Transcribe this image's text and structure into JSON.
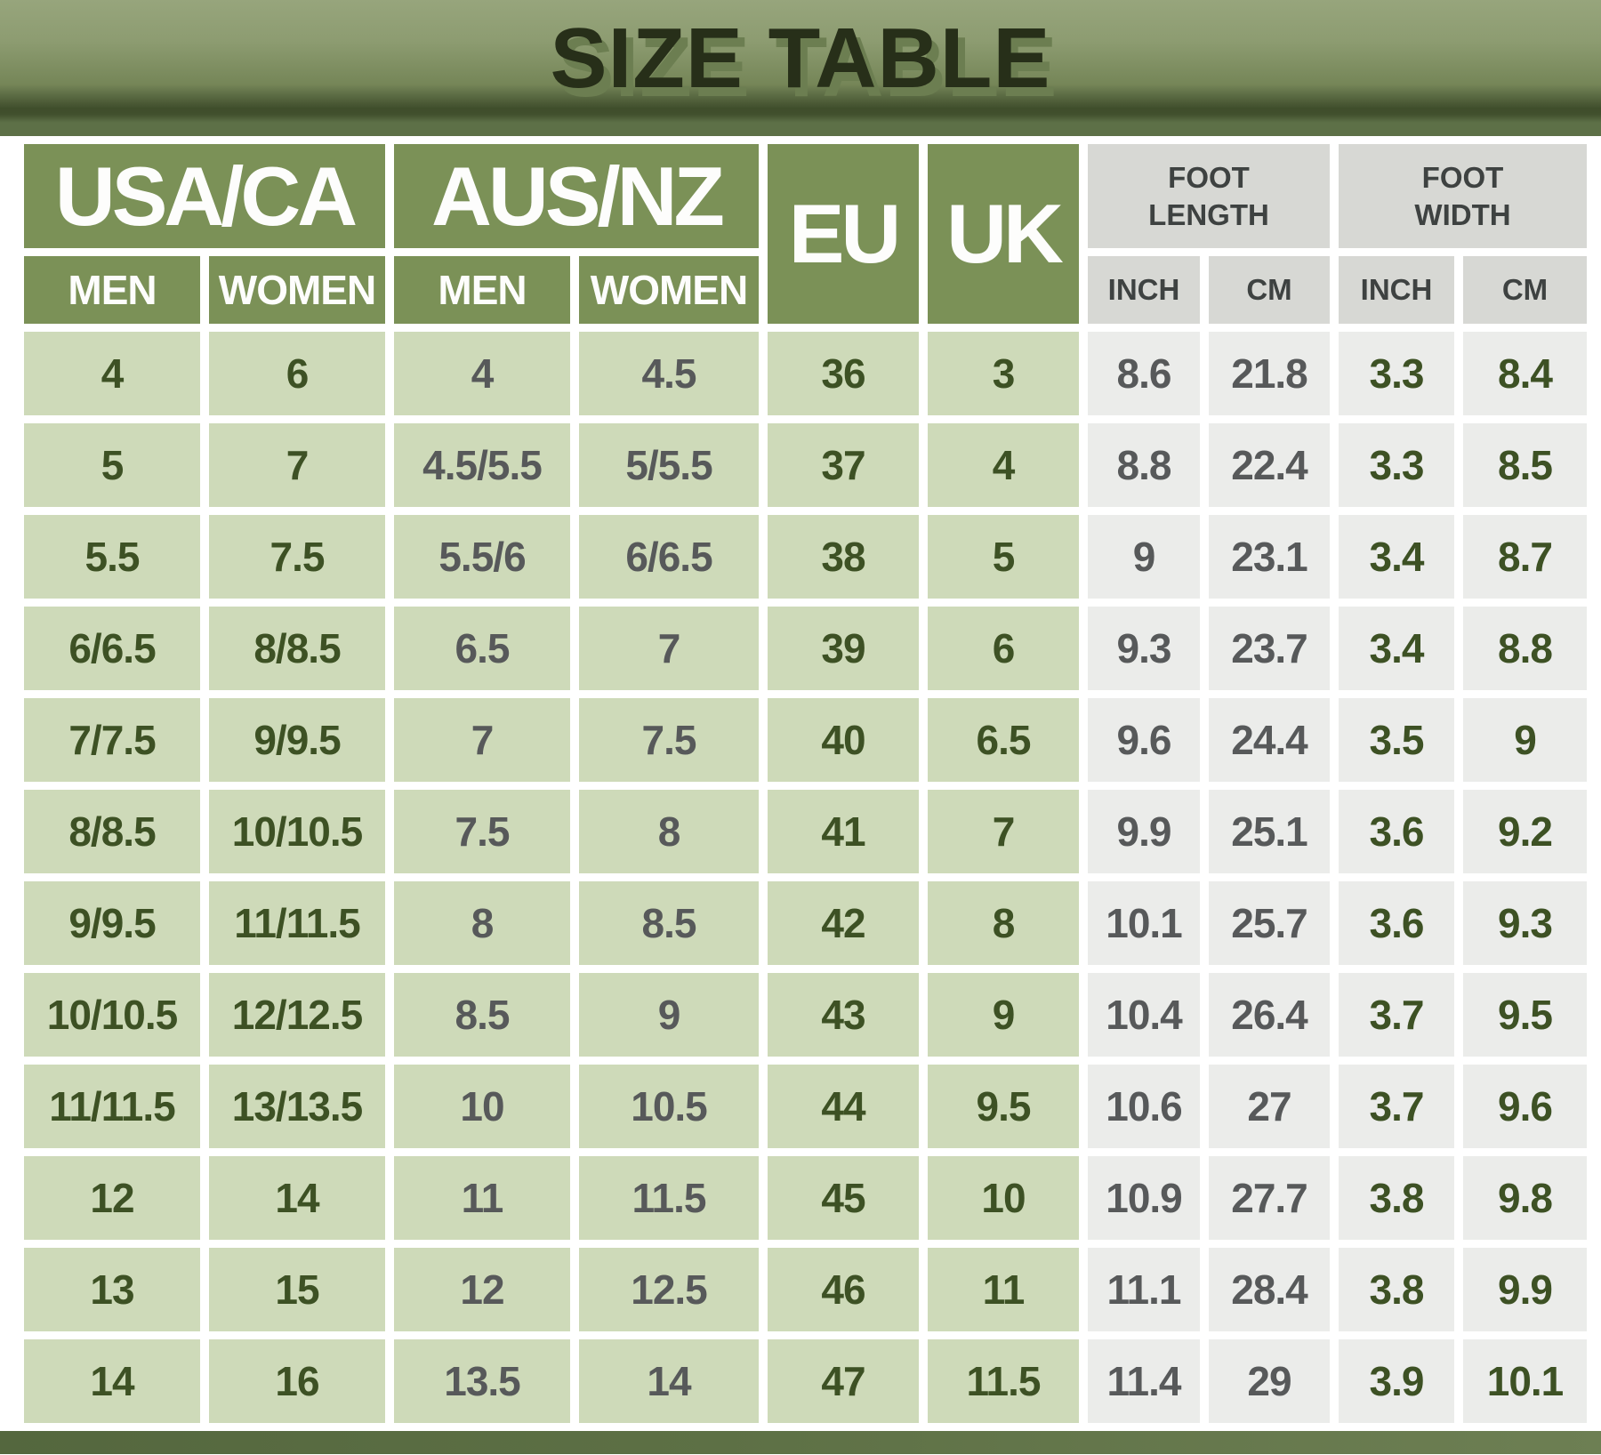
{
  "title": "SIZE TABLE",
  "chart_data": {
    "type": "table",
    "columns": {
      "usa_ca": "USA/CA",
      "aus_nz": "AUS/NZ",
      "eu": "EU",
      "uk": "UK",
      "foot_length": "FOOT LENGTH",
      "foot_width": "FOOT WIDTH",
      "men": "MEN",
      "women": "WOMEN",
      "inch": "INCH",
      "cm": "CM"
    },
    "rows": [
      {
        "usa_men": "4",
        "usa_women": "6",
        "aus_men": "4",
        "aus_women": "4.5",
        "eu": "36",
        "uk": "3",
        "fl_inch": "8.6",
        "fl_cm": "21.8",
        "fw_inch": "3.3",
        "fw_cm": "8.4"
      },
      {
        "usa_men": "5",
        "usa_women": "7",
        "aus_men": "4.5/5.5",
        "aus_women": "5/5.5",
        "eu": "37",
        "uk": "4",
        "fl_inch": "8.8",
        "fl_cm": "22.4",
        "fw_inch": "3.3",
        "fw_cm": "8.5"
      },
      {
        "usa_men": "5.5",
        "usa_women": "7.5",
        "aus_men": "5.5/6",
        "aus_women": "6/6.5",
        "eu": "38",
        "uk": "5",
        "fl_inch": "9",
        "fl_cm": "23.1",
        "fw_inch": "3.4",
        "fw_cm": "8.7"
      },
      {
        "usa_men": "6/6.5",
        "usa_women": "8/8.5",
        "aus_men": "6.5",
        "aus_women": "7",
        "eu": "39",
        "uk": "6",
        "fl_inch": "9.3",
        "fl_cm": "23.7",
        "fw_inch": "3.4",
        "fw_cm": "8.8"
      },
      {
        "usa_men": "7/7.5",
        "usa_women": "9/9.5",
        "aus_men": "7",
        "aus_women": "7.5",
        "eu": "40",
        "uk": "6.5",
        "fl_inch": "9.6",
        "fl_cm": "24.4",
        "fw_inch": "3.5",
        "fw_cm": "9"
      },
      {
        "usa_men": "8/8.5",
        "usa_women": "10/10.5",
        "aus_men": "7.5",
        "aus_women": "8",
        "eu": "41",
        "uk": "7",
        "fl_inch": "9.9",
        "fl_cm": "25.1",
        "fw_inch": "3.6",
        "fw_cm": "9.2"
      },
      {
        "usa_men": "9/9.5",
        "usa_women": "11/11.5",
        "aus_men": "8",
        "aus_women": "8.5",
        "eu": "42",
        "uk": "8",
        "fl_inch": "10.1",
        "fl_cm": "25.7",
        "fw_inch": "3.6",
        "fw_cm": "9.3"
      },
      {
        "usa_men": "10/10.5",
        "usa_women": "12/12.5",
        "aus_men": "8.5",
        "aus_women": "9",
        "eu": "43",
        "uk": "9",
        "fl_inch": "10.4",
        "fl_cm": "26.4",
        "fw_inch": "3.7",
        "fw_cm": "9.5"
      },
      {
        "usa_men": "11/11.5",
        "usa_women": "13/13.5",
        "aus_men": "10",
        "aus_women": "10.5",
        "eu": "44",
        "uk": "9.5",
        "fl_inch": "10.6",
        "fl_cm": "27",
        "fw_inch": "3.7",
        "fw_cm": "9.6"
      },
      {
        "usa_men": "12",
        "usa_women": "14",
        "aus_men": "11",
        "aus_women": "11.5",
        "eu": "45",
        "uk": "10",
        "fl_inch": "10.9",
        "fl_cm": "27.7",
        "fw_inch": "3.8",
        "fw_cm": "9.8"
      },
      {
        "usa_men": "13",
        "usa_women": "15",
        "aus_men": "12",
        "aus_women": "12.5",
        "eu": "46",
        "uk": "11",
        "fl_inch": "11.1",
        "fl_cm": "28.4",
        "fw_inch": "3.8",
        "fw_cm": "9.9"
      },
      {
        "usa_men": "14",
        "usa_women": "16",
        "aus_men": "13.5",
        "aus_women": "14",
        "eu": "47",
        "uk": "11.5",
        "fl_inch": "11.4",
        "fl_cm": "29",
        "fw_inch": "3.9",
        "fw_cm": "10.1"
      }
    ]
  },
  "colors": {
    "header_green": "#7b9157",
    "cell_green": "#cedab9",
    "text_dark_green": "#3d5124",
    "text_gray": "#57595a",
    "header_gray": "#d7d8d4",
    "header_gray_text": "#3e4241",
    "cell_gray": "#ebecea",
    "banner_title_text": "#272f19",
    "banner_bottom_strip": "#5d7047"
  }
}
